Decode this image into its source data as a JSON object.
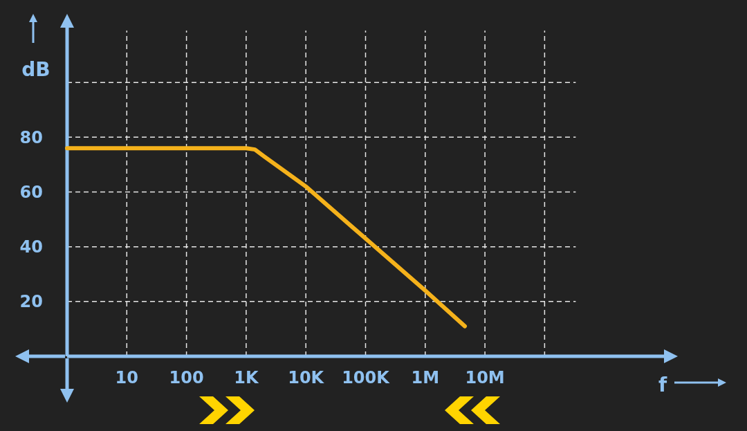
{
  "chart_data": {
    "type": "line",
    "xlabel": "f",
    "ylabel": "dB",
    "log": "x",
    "grid": true,
    "marker": "none",
    "line_style": "solid",
    "xlim": [
      1,
      10000000000
    ],
    "ylim": [
      0,
      120
    ],
    "xticks": [
      {
        "value": 10,
        "label": "10"
      },
      {
        "value": 100,
        "label": "100"
      },
      {
        "value": 1000,
        "label": "1K"
      },
      {
        "value": 10000,
        "label": "10K"
      },
      {
        "value": 100000,
        "label": "100K"
      },
      {
        "value": 1000000,
        "label": "1M"
      },
      {
        "value": 10000000,
        "label": "10M"
      },
      {
        "value": 100000000,
        "label": null
      }
    ],
    "yticks": [
      20,
      40,
      60,
      80,
      {
        "value": 100,
        "label": null
      }
    ],
    "x": [
      1,
      1000,
      1400,
      2000,
      10000,
      100000,
      1000000,
      4600000
    ],
    "series": [
      {
        "color": "#f5b21b",
        "values": [
          76,
          76,
          75.5,
          73,
          62,
          43,
          24,
          11
        ]
      }
    ]
  }
}
